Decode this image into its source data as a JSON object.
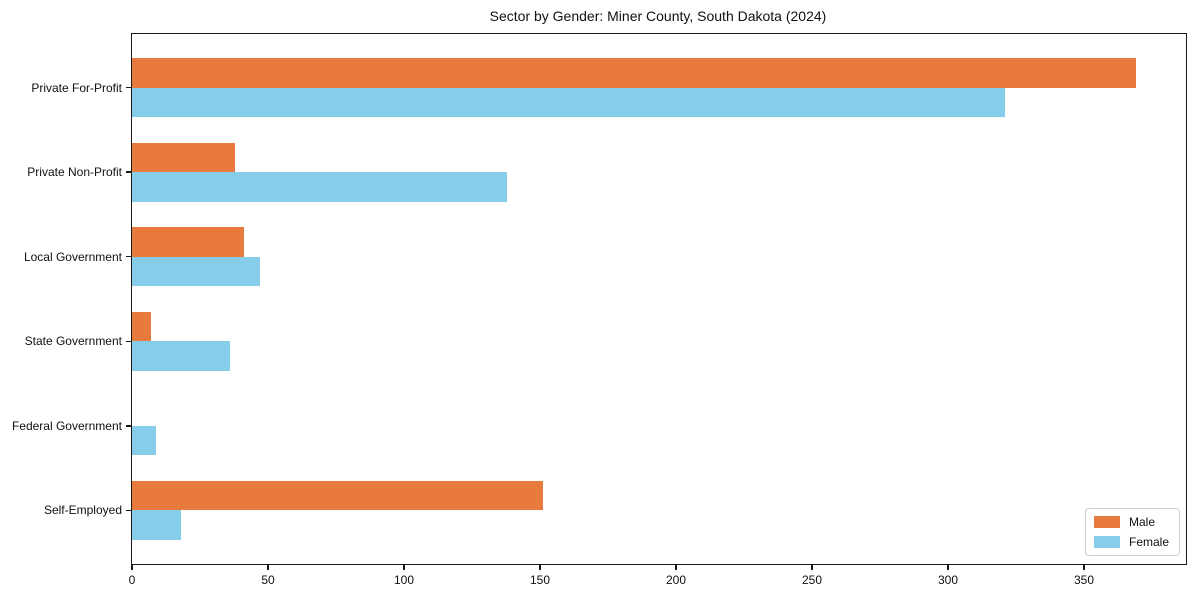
{
  "title": "Sector by Gender: Miner County, South Dakota (2024)",
  "colors": {
    "male": "#e87a3d",
    "female": "#85cde8",
    "axis": "#1a1a1a",
    "legend_border": "#cccccc",
    "background": "#ffffff"
  },
  "chart_data": {
    "type": "bar",
    "orientation": "horizontal",
    "title": "Sector by Gender: Miner County, South Dakota (2024)",
    "xlabel": "",
    "ylabel": "",
    "categories": [
      "Private For-Profit",
      "Private Non-Profit",
      "Local Government",
      "State Government",
      "Federal Government",
      "Self-Employed"
    ],
    "series": [
      {
        "name": "Male",
        "color": "#e87a3d",
        "values": [
          369,
          38,
          41,
          7,
          0,
          151
        ]
      },
      {
        "name": "Female",
        "color": "#85cde8",
        "values": [
          321,
          138,
          47,
          36,
          9,
          18
        ]
      }
    ],
    "xlim": [
      0,
      387.5
    ],
    "xticks": [
      0,
      50,
      100,
      150,
      200,
      250,
      300,
      350
    ],
    "grid": false,
    "legend_position": "lower right"
  },
  "legend": {
    "items": [
      {
        "label": "Male"
      },
      {
        "label": "Female"
      }
    ]
  }
}
